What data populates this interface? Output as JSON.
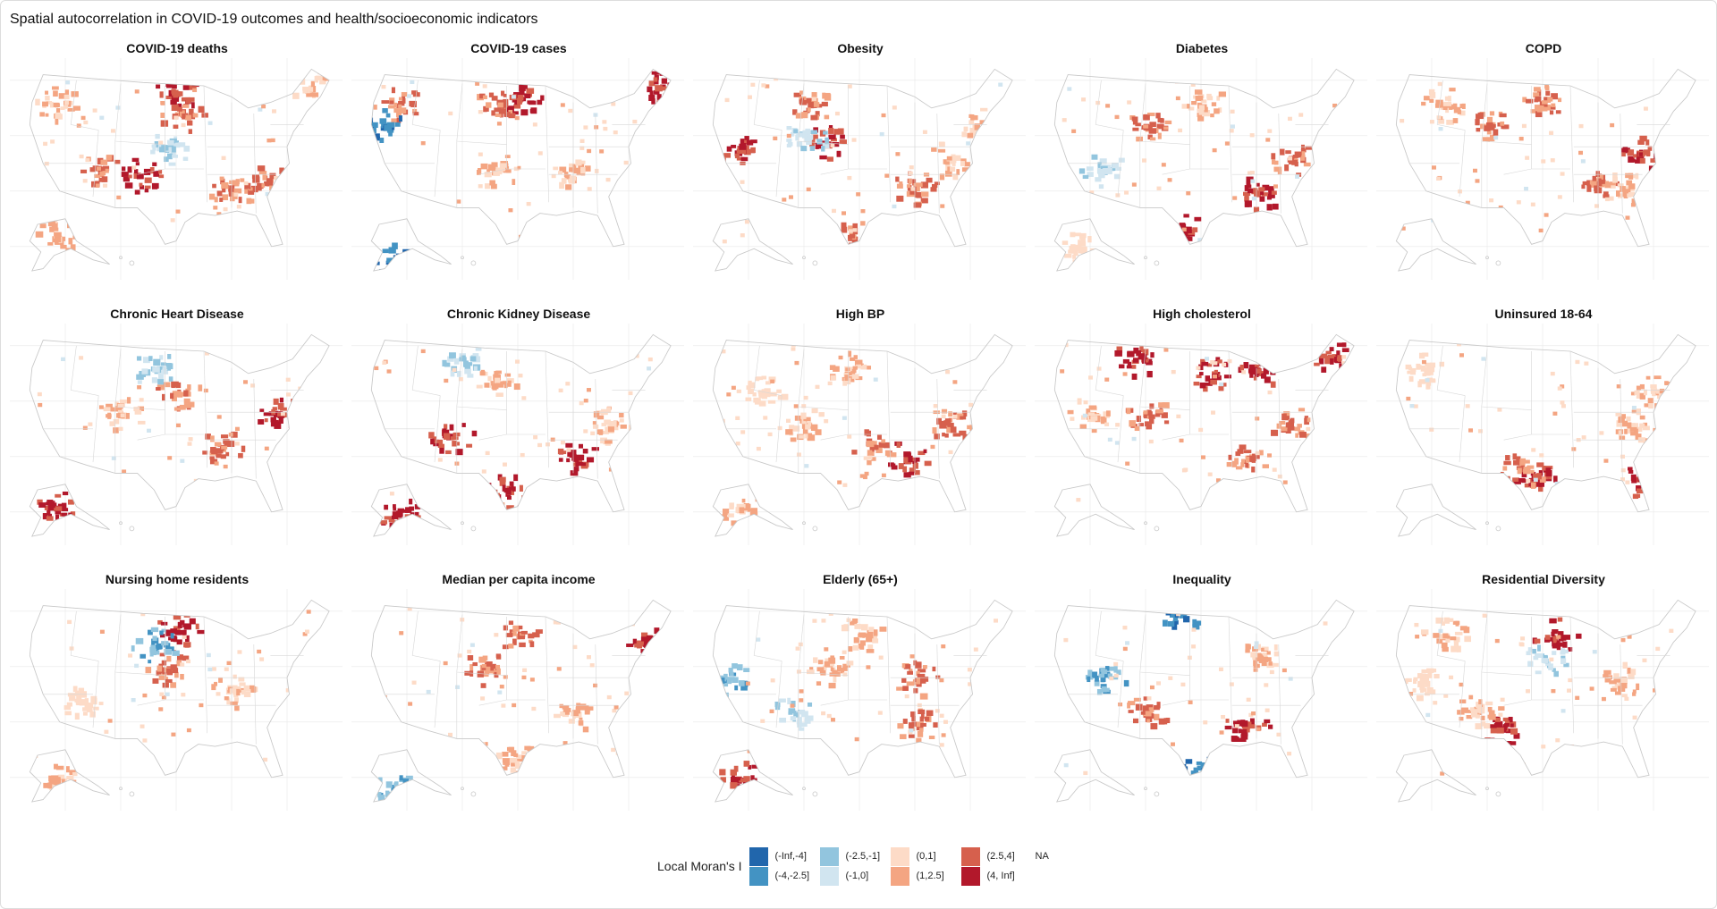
{
  "title": "Spatial autocorrelation in COVID-19 outcomes and health/socioeconomic indicators",
  "chart_data": {
    "type": "choropleth-map-grid",
    "panels": [
      "COVID-19 deaths",
      "COVID-19 cases",
      "Obesity",
      "Diabetes",
      "COPD",
      "Chronic Heart Disease",
      "Chronic Kidney Disease",
      "High BP",
      "High cholesterol",
      "Uninsured 18-64",
      "Nursing home residents",
      "Median per capita income",
      "Elderly (65+)",
      "Inequality",
      "Residential Diversity"
    ],
    "legend": {
      "title": "Local Moran's I",
      "bins": [
        {
          "label": "(-Inf,-4]",
          "color": "#2166ac"
        },
        {
          "label": "(-4,-2.5]",
          "color": "#4393c3"
        },
        {
          "label": "(-2.5,-1]",
          "color": "#92c5de"
        },
        {
          "label": "(-1,0]",
          "color": "#d1e5f0"
        },
        {
          "label": "(0,1]",
          "color": "#fddbc7"
        },
        {
          "label": "(1,2.5]",
          "color": "#f4a582"
        },
        {
          "label": "(2.5,4]",
          "color": "#d6604d"
        },
        {
          "label": "(4, Inf]",
          "color": "#b2182b"
        }
      ],
      "na_label": "NA",
      "na_color": "#ffffff"
    },
    "grid": true
  }
}
